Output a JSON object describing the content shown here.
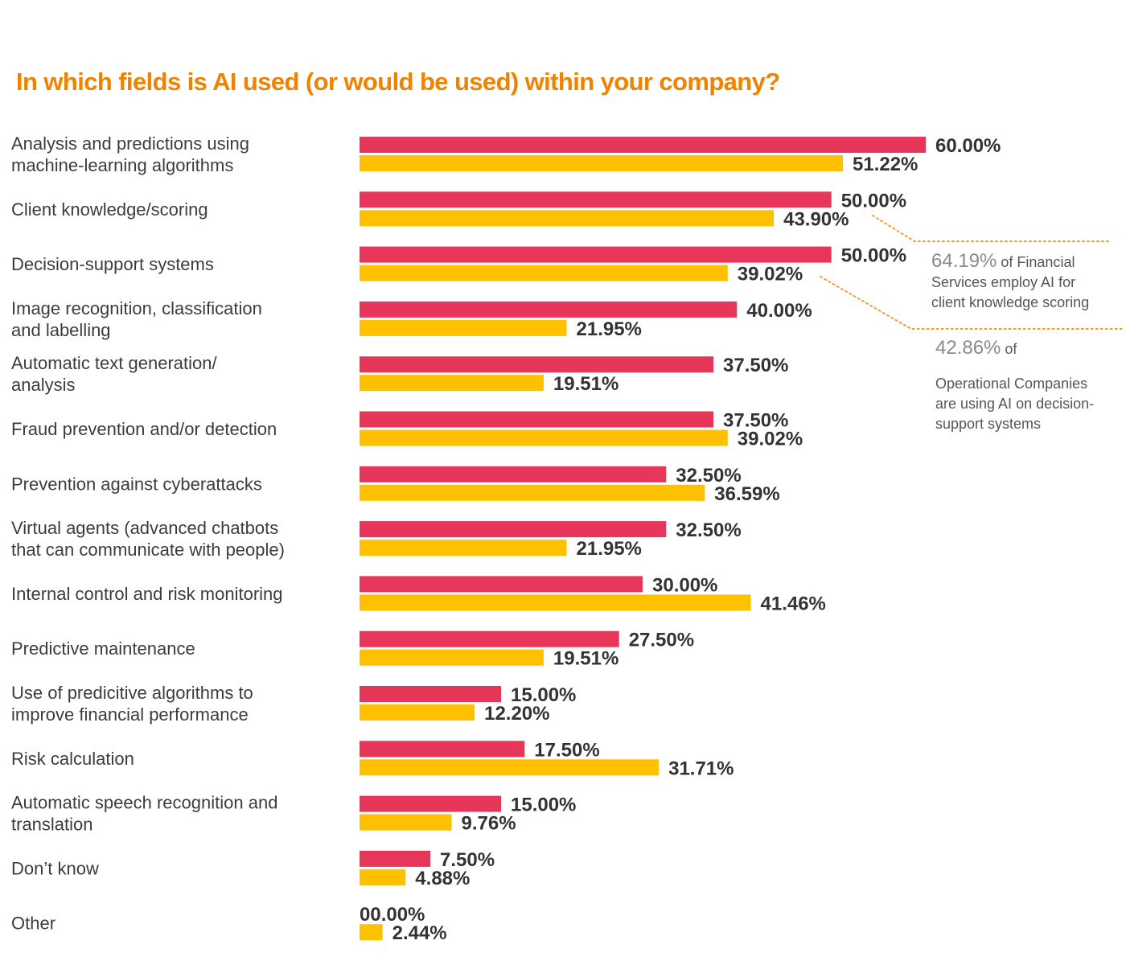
{
  "chart_data": {
    "type": "bar",
    "orientation": "horizontal",
    "title": "In which fields is AI used (or would be used) within your company?",
    "categories": [
      [
        "Analysis and predictions using",
        "machine-learning algorithms"
      ],
      [
        "Client knowledge/scoring"
      ],
      [
        "Decision-support systems"
      ],
      [
        "Image recognition, classification",
        "and labelling"
      ],
      [
        "Automatic text generation/",
        "analysis"
      ],
      [
        "Fraud prevention and/or detection"
      ],
      [
        "Prevention against cyberattacks"
      ],
      [
        "Virtual agents (advanced chatbots",
        "that can communicate with people)"
      ],
      [
        "Internal control and risk monitoring"
      ],
      [
        "Predictive maintenance"
      ],
      [
        "Use of predicitive algorithms to",
        "improve financial performance"
      ],
      [
        "Risk calculation"
      ],
      [
        "Automatic speech recognition and",
        "translation"
      ],
      [
        "Don’t know"
      ],
      [
        "Other"
      ]
    ],
    "series": [
      {
        "color": "#e8365a",
        "values": [
          60.0,
          50.0,
          50.0,
          40.0,
          37.5,
          37.5,
          32.5,
          32.5,
          30.0,
          27.5,
          15.0,
          17.5,
          15.0,
          7.5,
          0.0
        ],
        "labels": [
          "60.00%",
          "50.00%",
          "50.00%",
          "40.00%",
          "37.50%",
          "37.50%",
          "32.50%",
          "32.50%",
          "30.00%",
          "27.50%",
          "15.00%",
          "17.50%",
          "15.00%",
          "7.50%",
          "00.00%"
        ]
      },
      {
        "color": "#ffc000",
        "values": [
          51.22,
          43.9,
          39.02,
          21.95,
          19.51,
          39.02,
          36.59,
          21.95,
          41.46,
          19.51,
          12.2,
          31.71,
          9.76,
          4.88,
          2.44
        ],
        "labels": [
          "51.22%",
          "43.90%",
          "39.02%",
          "21.95%",
          "19.51%",
          "39.02%",
          "36.59%",
          "21.95%",
          "41.46%",
          "19.51%",
          "12.20%",
          "31.71%",
          "9.76%",
          "4.88%",
          "2.44%"
        ]
      }
    ],
    "xlim": [
      0,
      60
    ],
    "grid": false,
    "legend": "none",
    "annotations": [
      {
        "highlight": "64.19%",
        "text": [
          " of Financial",
          "Services employ AI for",
          "client knowledge scoring"
        ],
        "points_to": "Client knowledge/scoring"
      },
      {
        "highlight": "42.86%",
        "text": [
          " of",
          "Operational Companies",
          "are using AI on decision-",
          "support systems"
        ],
        "points_to": "Decision-support systems"
      }
    ]
  },
  "colors": {
    "title": "#ef8200",
    "callout_line": "#f39a35"
  }
}
